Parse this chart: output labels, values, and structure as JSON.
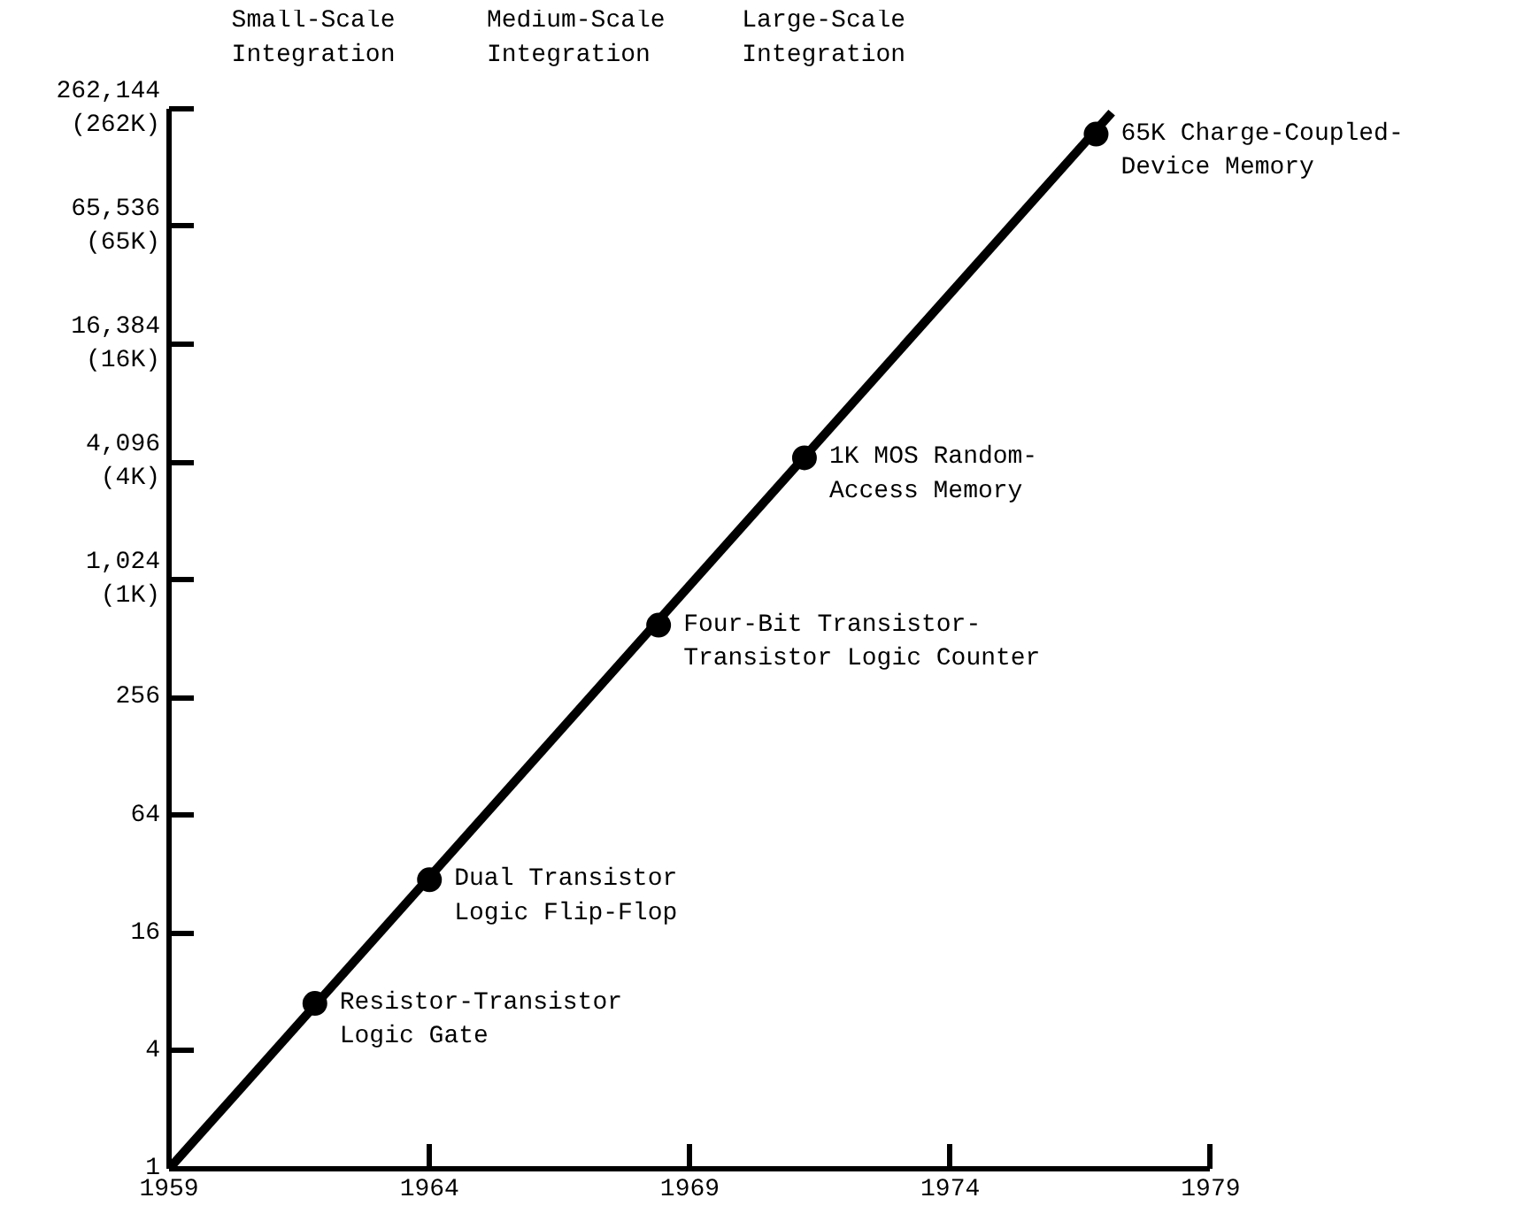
{
  "chart_data": {
    "type": "line",
    "series": [
      {
        "color": "#000000",
        "x": [
          1959,
          1977.1
        ],
        "values": [
          1,
          250000
        ],
        "marker": "none"
      },
      {
        "type": "scatter",
        "color": "#000000",
        "x": [
          1961.8,
          1964.0,
          1968.4,
          1971.2,
          1976.8
        ],
        "values": [
          7,
          30,
          600,
          4300,
          194000
        ],
        "marker": "circle"
      }
    ],
    "xlim": [
      1959,
      1979
    ],
    "xticks": [
      1959,
      1964,
      1969,
      1974,
      1979
    ],
    "ylim": [
      1,
      262144
    ],
    "yticks": [
      1,
      4,
      16,
      64,
      256,
      {
        "value": 1024,
        "label": "1,024\n(1K)"
      },
      {
        "value": 4096,
        "label": "4,096\n(4K)"
      },
      {
        "value": 16384,
        "label": "16,384\n(16K)"
      },
      {
        "value": 65536,
        "label": "65,536\n(65K)"
      },
      {
        "value": 262144,
        "label": "262,144\n(262K)"
      }
    ],
    "log": "y",
    "grid": false,
    "line_style": "solid",
    "annotations": [
      "Small-Scale\nIntegration",
      "Medium-Scale\nIntegration",
      "Large-Scale\nIntegration",
      {
        "text": "Resistor-Transistor\nLogic Gate",
        "x": 1961.8,
        "y": 7
      },
      {
        "text": "Dual Transistor\nLogic Flip-Flop",
        "x": 1964.0,
        "y": 30
      },
      {
        "text": "Four-Bit Transistor-\nTransistor Logic Counter",
        "x": 1968.4,
        "y": 600
      },
      {
        "text": "1K MOS Random-\nAccess Memory",
        "x": 1971.2,
        "y": 4300
      },
      {
        "text": "65K Charge-Coupled-\nDevice Memory",
        "x": 1976.8,
        "y": 194000
      }
    ]
  }
}
